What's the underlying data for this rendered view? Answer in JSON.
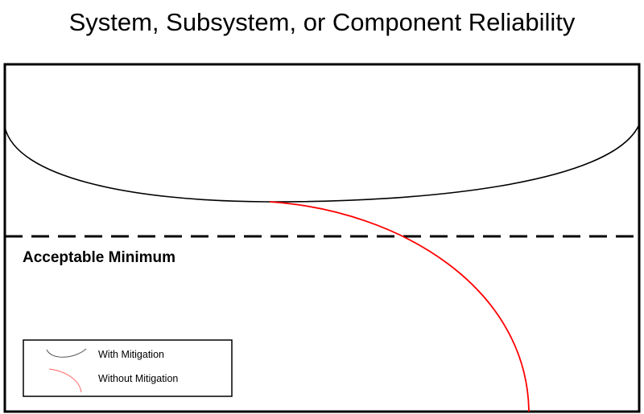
{
  "title": "System, Subsystem, or Component Reliability",
  "threshold_label": "Acceptable Minimum",
  "legend": [
    {
      "label": "With Mitigation",
      "color": "#000000"
    },
    {
      "label": "Without Mitigation",
      "color": "#ff0000"
    }
  ]
}
